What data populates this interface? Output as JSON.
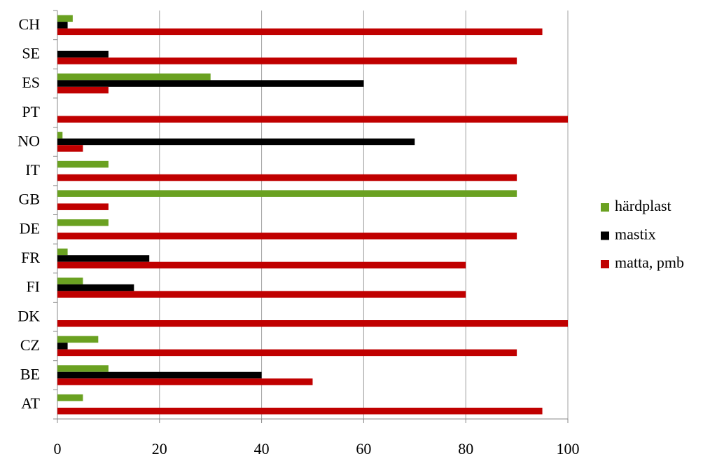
{
  "chart_data": {
    "type": "hbar",
    "categories": [
      "CH",
      "SE",
      "ES",
      "PT",
      "NO",
      "IT",
      "GB",
      "DE",
      "FR",
      "FI",
      "DK",
      "CZ",
      "BE",
      "AT"
    ],
    "series": [
      {
        "name": "härdplast",
        "color": "#6aa121",
        "values": [
          3,
          0,
          30,
          0,
          1,
          10,
          90,
          10,
          2,
          5,
          0,
          8,
          10,
          5
        ]
      },
      {
        "name": "mastix",
        "color": "#000000",
        "values": [
          2,
          10,
          60,
          0,
          70,
          0,
          0,
          0,
          18,
          15,
          0,
          2,
          40,
          0
        ]
      },
      {
        "name": "matta, pmb",
        "color": "#c00000",
        "values": [
          95,
          90,
          10,
          100,
          5,
          90,
          10,
          90,
          80,
          80,
          100,
          90,
          50,
          95
        ]
      }
    ],
    "xlim": [
      0,
      100
    ],
    "xticks": [
      0,
      20,
      40,
      60,
      80,
      100
    ],
    "grid": true,
    "legend": "right"
  }
}
